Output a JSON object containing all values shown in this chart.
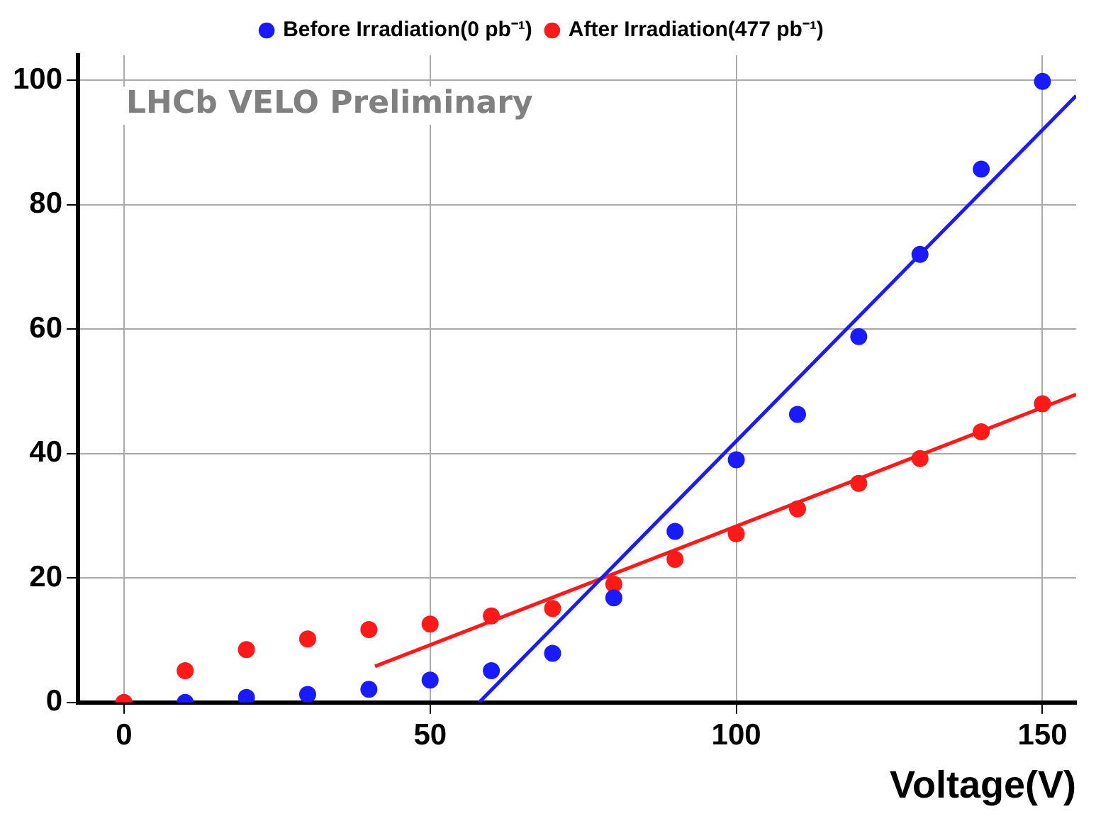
{
  "chart_data": {
    "type": "scatter",
    "xlabel": "Voltage(V)",
    "annotations": [
      "LHCb VELO Preliminary"
    ],
    "xlim": [
      -7.5,
      155.5
    ],
    "ylim": [
      0,
      104
    ],
    "xticks": [
      0,
      50,
      100,
      150
    ],
    "yticks": [
      0,
      20,
      40,
      60,
      80,
      100
    ],
    "grid": true,
    "legend": "top",
    "series": [
      {
        "name": "Before Irradiation(0 pb⁻¹)",
        "color": "#1a1aff",
        "marker": "circle",
        "x": [
          10,
          20,
          30,
          40,
          50,
          60,
          70,
          80,
          90,
          100,
          110,
          120,
          130,
          140,
          150
        ],
        "values": [
          0,
          0.8,
          1.3,
          2.1,
          3.6,
          5.1,
          7.9,
          16.8,
          27.5,
          39,
          46.3,
          58.8,
          72,
          85.7,
          99.8
        ]
      },
      {
        "name": "After Irradiation(477 pb⁻¹)",
        "color": "#ff1a1a",
        "marker": "circle",
        "x": [
          0,
          10,
          20,
          30,
          40,
          50,
          60,
          70,
          80,
          90,
          100,
          110,
          120,
          130,
          140,
          150
        ],
        "values": [
          0,
          5.1,
          8.5,
          10.2,
          11.7,
          12.6,
          13.9,
          15.1,
          19,
          23,
          27.1,
          31.1,
          35.2,
          39.2,
          43.5,
          48
        ]
      },
      {
        "type": "line",
        "color": "#1a1aff",
        "x": [
          58,
          155.5
        ],
        "values": [
          0,
          97.5
        ]
      },
      {
        "type": "line",
        "color": "#ff1a1a",
        "x": [
          41,
          155.5
        ],
        "values": [
          5.8,
          49.5
        ]
      }
    ]
  }
}
